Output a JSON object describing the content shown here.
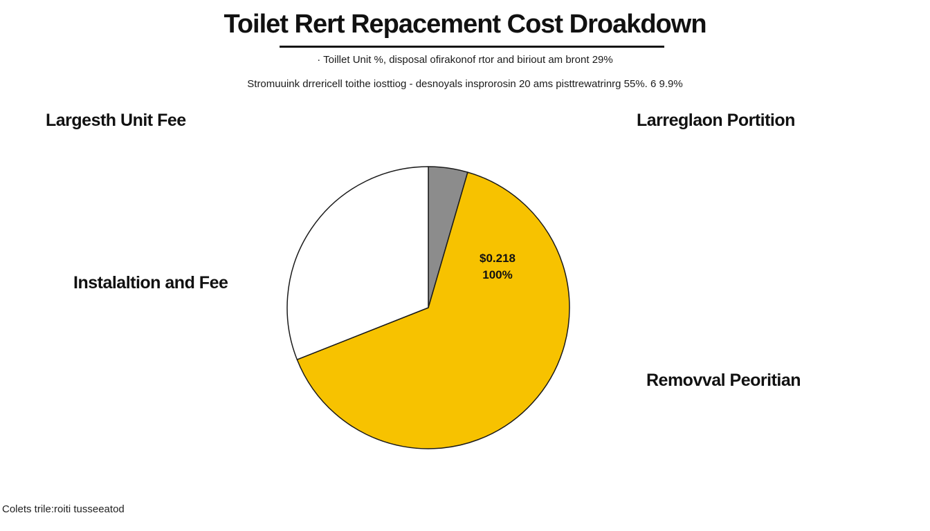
{
  "chart_data": {
    "type": "pie",
    "title": "Toilet Rert Repacement Cost Droakdown",
    "subtitles": [
      "· Toillet Unit %, disposal ofirakonof rtor and biriout am bront 29%",
      "Stromuuink drrericell toithe iosttiog - desnoyals insprorosin 20 ams pisttrewatrinrg 55%. 6 9.9%"
    ],
    "slices": [
      {
        "name": "",
        "value": 4.5,
        "color": "#8c8c8c"
      },
      {
        "name": "",
        "value": 64.5,
        "color": "#f7c200"
      },
      {
        "name": "",
        "value": 31.0,
        "color": "#ffffff"
      }
    ],
    "slice_label": {
      "amount": "$0.218",
      "percent": "100%"
    },
    "side_labels": {
      "top_left": "Largesth Unit Fee",
      "top_right": "Larreglaon Portition",
      "middle_left": "Instalaltion and Fee",
      "bottom_right": "Removval Peoritian"
    },
    "footnote": "Colets trile:roiti tusseeatod",
    "start_angle_deg": 0,
    "direction": "clockwise"
  }
}
